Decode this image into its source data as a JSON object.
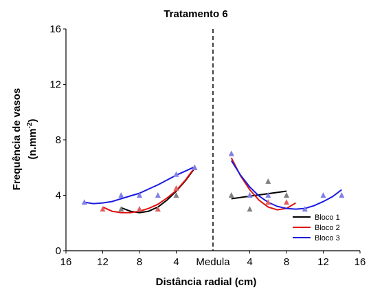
{
  "chart_data": {
    "type": "scatter",
    "title": "Tratamento 6",
    "xlabel": "Distância radial (cm)",
    "ylabel_line1": "Frequência de vasos",
    "ylabel_line2_prefix": "(n.mm",
    "ylabel_line2_sup": "-2",
    "ylabel_line2_suffix": ")",
    "ylim": [
      0,
      16
    ],
    "yticks": [
      0,
      4,
      8,
      12,
      16
    ],
    "xlim_left": [
      16,
      0
    ],
    "xlim_right": [
      0,
      16
    ],
    "left_xticks": [
      16,
      12,
      8,
      4
    ],
    "right_xticks": [
      4,
      8,
      12,
      16
    ],
    "center_label": "Medula",
    "legend_position": "bottom-right",
    "marker": "triangle",
    "series": [
      {
        "name": "Bloco 1",
        "color": "#000000",
        "left_points": [
          [
            10,
            3
          ],
          [
            8,
            3
          ],
          [
            6,
            3
          ],
          [
            4,
            4
          ],
          [
            2,
            6
          ]
        ],
        "left_fit": [
          [
            10,
            3.1
          ],
          [
            9,
            2.85
          ],
          [
            8,
            2.75
          ],
          [
            7,
            2.85
          ],
          [
            6,
            3.15
          ],
          [
            5,
            3.65
          ],
          [
            4,
            4.3
          ],
          [
            3,
            5.05
          ],
          [
            2,
            5.95
          ]
        ],
        "right_points": [
          [
            2,
            4
          ],
          [
            4,
            3
          ],
          [
            6,
            5
          ],
          [
            8,
            4
          ]
        ],
        "right_fit": [
          [
            2,
            3.75
          ],
          [
            8,
            4.3
          ]
        ]
      },
      {
        "name": "Bloco 2",
        "color": "#e01010",
        "left_points": [
          [
            12,
            3
          ],
          [
            8,
            3
          ],
          [
            6,
            3
          ],
          [
            4,
            4.5
          ],
          [
            2,
            6
          ]
        ],
        "left_fit": [
          [
            12,
            3.15
          ],
          [
            11,
            2.85
          ],
          [
            10,
            2.75
          ],
          [
            9,
            2.75
          ],
          [
            8,
            2.85
          ],
          [
            7,
            3.05
          ],
          [
            6,
            3.35
          ],
          [
            5,
            3.8
          ],
          [
            4,
            4.35
          ],
          [
            3,
            5.1
          ],
          [
            2,
            6
          ]
        ],
        "right_points": [
          [
            2,
            7
          ],
          [
            4,
            4
          ],
          [
            6,
            3.5
          ],
          [
            8,
            3.5
          ]
        ],
        "right_fit": [
          [
            2,
            6.7
          ],
          [
            3,
            5.4
          ],
          [
            4,
            4.4
          ],
          [
            5,
            3.65
          ],
          [
            6,
            3.15
          ],
          [
            7,
            2.95
          ],
          [
            8,
            3.05
          ],
          [
            9,
            3.45
          ]
        ]
      },
      {
        "name": "Bloco 3",
        "color": "#1a1ae0",
        "left_points": [
          [
            14,
            3.5
          ],
          [
            10,
            4
          ],
          [
            8,
            4
          ],
          [
            6,
            4
          ],
          [
            4,
            5.5
          ],
          [
            2,
            6
          ]
        ],
        "left_fit": [
          [
            14,
            3.5
          ],
          [
            13,
            3.4
          ],
          [
            12,
            3.45
          ],
          [
            11,
            3.55
          ],
          [
            10,
            3.75
          ],
          [
            9,
            3.95
          ],
          [
            8,
            4.15
          ],
          [
            7,
            4.45
          ],
          [
            6,
            4.75
          ],
          [
            5,
            5.1
          ],
          [
            4,
            5.45
          ],
          [
            3,
            5.75
          ],
          [
            2,
            6.05
          ]
        ],
        "right_points": [
          [
            2,
            7
          ],
          [
            4,
            4
          ],
          [
            6,
            4
          ],
          [
            10,
            3
          ],
          [
            12,
            4
          ],
          [
            14,
            4
          ]
        ],
        "right_fit": [
          [
            2,
            6.5
          ],
          [
            3,
            5.45
          ],
          [
            4,
            4.6
          ],
          [
            5,
            3.95
          ],
          [
            6,
            3.5
          ],
          [
            7,
            3.2
          ],
          [
            8,
            3.05
          ],
          [
            9,
            3
          ],
          [
            10,
            3.05
          ],
          [
            11,
            3.25
          ],
          [
            12,
            3.55
          ],
          [
            13,
            3.9
          ],
          [
            14,
            4.4
          ]
        ]
      }
    ]
  }
}
